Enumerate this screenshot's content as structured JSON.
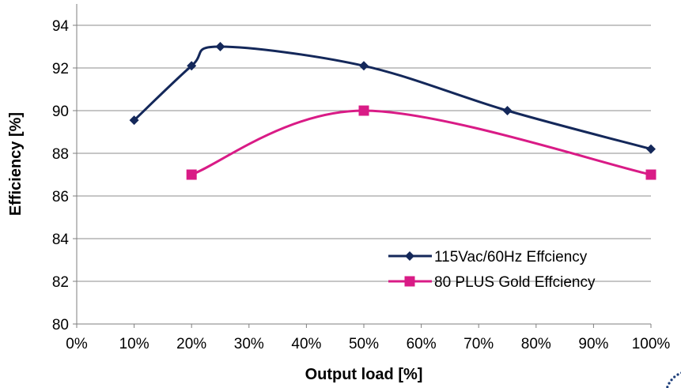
{
  "chart_data": {
    "type": "line",
    "title": "",
    "xlabel": "Output load [%]",
    "ylabel": "Efficiency [%]",
    "xlim": [
      0,
      100
    ],
    "ylim": [
      80,
      95
    ],
    "x_ticks": [
      0,
      10,
      20,
      30,
      40,
      50,
      60,
      70,
      80,
      90,
      100
    ],
    "x_tick_labels": [
      "0%",
      "10%",
      "20%",
      "30%",
      "40%",
      "50%",
      "60%",
      "70%",
      "80%",
      "90%",
      "100%"
    ],
    "y_ticks": [
      80,
      82,
      84,
      86,
      88,
      90,
      92,
      94
    ],
    "y_tick_labels": [
      "80",
      "82",
      "84",
      "86",
      "88",
      "90",
      "92",
      "94"
    ],
    "grid": "horizontal",
    "legend_position": "bottom-right",
    "series": [
      {
        "name": "115Vac/60Hz Effciency",
        "color": "#14285a",
        "marker": "diamond",
        "smooth": true,
        "x": [
          10,
          20,
          25,
          50,
          75,
          100
        ],
        "y": [
          89.55,
          92.1,
          93.0,
          92.1,
          90.0,
          88.2
        ]
      },
      {
        "name": "80 PLUS Gold Effciency",
        "color": "#d91b86",
        "marker": "square",
        "smooth": true,
        "x": [
          20,
          50,
          100
        ],
        "y": [
          87.0,
          90.0,
          87.0
        ]
      }
    ]
  }
}
